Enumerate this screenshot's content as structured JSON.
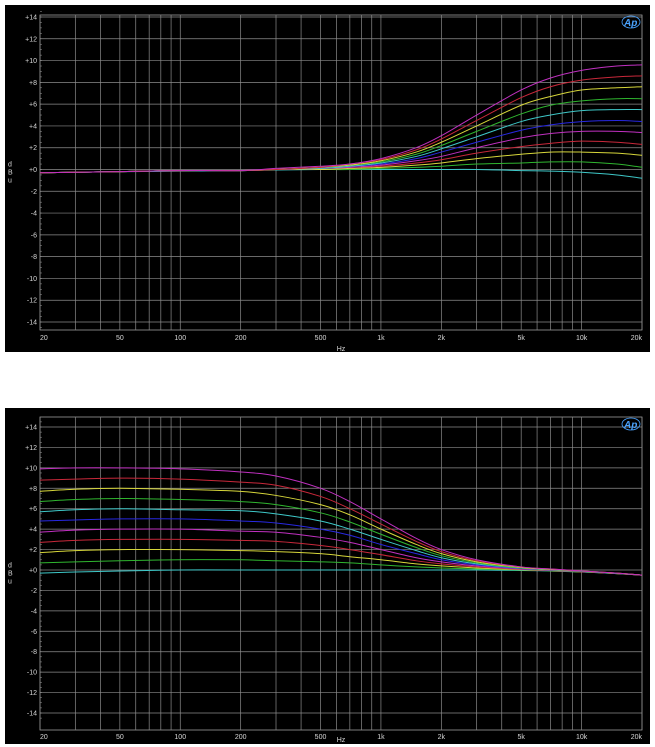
{
  "chart_data": [
    {
      "type": "line",
      "title": "",
      "xlabel": "Hz",
      "ylabel": "dBu",
      "xscale": "log",
      "xlim": [
        20,
        20000
      ],
      "ylim": [
        -14,
        14
      ],
      "grid": true,
      "logo": "Ap",
      "x_ticks": [
        {
          "v": 20,
          "label": "20"
        },
        {
          "v": 50,
          "label": "50"
        },
        {
          "v": 100,
          "label": "100"
        },
        {
          "v": 200,
          "label": "200"
        },
        {
          "v": 500,
          "label": "500"
        },
        {
          "v": 1000,
          "label": "1k"
        },
        {
          "v": 2000,
          "label": "2k"
        },
        {
          "v": 5000,
          "label": "5k"
        },
        {
          "v": 10000,
          "label": "10k"
        },
        {
          "v": 20000,
          "label": "20k"
        }
      ],
      "y_ticks": [
        {
          "v": 14,
          "label": "+14"
        },
        {
          "v": 12,
          "label": "+12"
        },
        {
          "v": 10,
          "label": "+10"
        },
        {
          "v": 8,
          "label": "+8"
        },
        {
          "v": 6,
          "label": "+6"
        },
        {
          "v": 4,
          "label": "+4"
        },
        {
          "v": 2,
          "label": "+2"
        },
        {
          "v": 0,
          "label": "+0"
        },
        {
          "v": -2,
          "label": "-2"
        },
        {
          "v": -4,
          "label": "-4"
        },
        {
          "v": -6,
          "label": "-6"
        },
        {
          "v": -8,
          "label": "-8"
        },
        {
          "v": -10,
          "label": "-10"
        },
        {
          "v": -12,
          "label": "-12"
        },
        {
          "v": -14,
          "label": "-14"
        }
      ],
      "x": [
        20,
        30,
        50,
        100,
        200,
        300,
        500,
        700,
        1000,
        1500,
        2000,
        3000,
        5000,
        7000,
        10000,
        15000,
        20000
      ],
      "series": [
        {
          "color": "#c030c0",
          "values": [
            -0.3,
            -0.25,
            -0.2,
            -0.1,
            -0.1,
            0.1,
            0.3,
            0.5,
            1.0,
            2.0,
            3.1,
            5.0,
            7.3,
            8.4,
            9.1,
            9.5,
            9.6
          ]
        },
        {
          "color": "#c8283a",
          "values": [
            -0.3,
            -0.25,
            -0.2,
            -0.1,
            -0.1,
            0.0,
            0.2,
            0.5,
            0.9,
            1.8,
            2.8,
            4.5,
            6.6,
            7.6,
            8.2,
            8.5,
            8.6
          ]
        },
        {
          "color": "#d6d63a",
          "values": [
            -0.3,
            -0.25,
            -0.2,
            -0.1,
            -0.1,
            0.0,
            0.2,
            0.4,
            0.8,
            1.6,
            2.5,
            4.0,
            5.9,
            6.7,
            7.3,
            7.5,
            7.6
          ]
        },
        {
          "color": "#2fb52f",
          "values": [
            -0.3,
            -0.25,
            -0.2,
            -0.1,
            -0.1,
            0.0,
            0.2,
            0.4,
            0.7,
            1.4,
            2.2,
            3.5,
            5.1,
            5.9,
            6.3,
            6.5,
            6.5
          ]
        },
        {
          "color": "#3ec8c8",
          "values": [
            -0.3,
            -0.25,
            -0.2,
            -0.1,
            -0.1,
            0.0,
            0.1,
            0.3,
            0.6,
            1.2,
            1.9,
            3.0,
            4.4,
            5.0,
            5.4,
            5.5,
            5.5
          ]
        },
        {
          "color": "#2828e0",
          "values": [
            -0.3,
            -0.25,
            -0.2,
            -0.1,
            -0.1,
            0.0,
            0.1,
            0.3,
            0.5,
            1.0,
            1.6,
            2.5,
            3.6,
            4.1,
            4.4,
            4.5,
            4.4
          ]
        },
        {
          "color": "#c030c0",
          "values": [
            -0.3,
            -0.25,
            -0.2,
            -0.1,
            -0.1,
            0.0,
            0.1,
            0.2,
            0.4,
            0.8,
            1.2,
            2.0,
            2.9,
            3.3,
            3.5,
            3.5,
            3.4
          ]
        },
        {
          "color": "#c8283a",
          "values": [
            -0.3,
            -0.25,
            -0.2,
            -0.1,
            -0.1,
            0.0,
            0.1,
            0.2,
            0.3,
            0.6,
            0.9,
            1.5,
            2.1,
            2.4,
            2.6,
            2.5,
            2.3
          ]
        },
        {
          "color": "#d6d63a",
          "values": [
            -0.3,
            -0.25,
            -0.2,
            -0.1,
            -0.1,
            0.0,
            0.0,
            0.1,
            0.2,
            0.4,
            0.6,
            1.0,
            1.4,
            1.6,
            1.6,
            1.5,
            1.3
          ]
        },
        {
          "color": "#2fb52f",
          "values": [
            -0.3,
            -0.25,
            -0.2,
            -0.1,
            -0.1,
            0.0,
            0.0,
            0.0,
            0.1,
            0.2,
            0.3,
            0.5,
            0.6,
            0.7,
            0.7,
            0.5,
            0.2
          ]
        },
        {
          "color": "#3ec8c8",
          "values": [
            -0.3,
            -0.25,
            -0.2,
            -0.15,
            -0.1,
            -0.05,
            0,
            0,
            0,
            0,
            0,
            0,
            -0.1,
            -0.15,
            -0.25,
            -0.5,
            -0.8
          ]
        }
      ]
    },
    {
      "type": "line",
      "title": "",
      "xlabel": "Hz",
      "ylabel": "dBu",
      "xscale": "log",
      "xlim": [
        20,
        20000
      ],
      "ylim": [
        -14,
        14
      ],
      "grid": true,
      "logo": "Ap",
      "x_ticks": [
        {
          "v": 20,
          "label": "20"
        },
        {
          "v": 50,
          "label": "50"
        },
        {
          "v": 100,
          "label": "100"
        },
        {
          "v": 200,
          "label": "200"
        },
        {
          "v": 500,
          "label": "500"
        },
        {
          "v": 1000,
          "label": "1k"
        },
        {
          "v": 2000,
          "label": "2k"
        },
        {
          "v": 5000,
          "label": "5k"
        },
        {
          "v": 10000,
          "label": "10k"
        },
        {
          "v": 20000,
          "label": "20k"
        }
      ],
      "y_ticks": [
        {
          "v": 14,
          "label": "+14"
        },
        {
          "v": 12,
          "label": "+12"
        },
        {
          "v": 10,
          "label": "+10"
        },
        {
          "v": 8,
          "label": "+8"
        },
        {
          "v": 6,
          "label": "+6"
        },
        {
          "v": 4,
          "label": "+4"
        },
        {
          "v": 2,
          "label": "+2"
        },
        {
          "v": 0,
          "label": "+0"
        },
        {
          "v": -2,
          "label": "-2"
        },
        {
          "v": -4,
          "label": "-4"
        },
        {
          "v": -6,
          "label": "-6"
        },
        {
          "v": -8,
          "label": "-8"
        },
        {
          "v": -10,
          "label": "-10"
        },
        {
          "v": -12,
          "label": "-12"
        },
        {
          "v": -14,
          "label": "-14"
        }
      ],
      "x": [
        20,
        30,
        50,
        100,
        200,
        300,
        500,
        700,
        1000,
        1500,
        2000,
        3000,
        5000,
        7000,
        10000,
        15000,
        20000
      ],
      "series": [
        {
          "color": "#c030c0",
          "values": [
            9.9,
            10.0,
            10.0,
            9.9,
            9.6,
            9.2,
            8.0,
            6.7,
            5.0,
            3.1,
            2.0,
            1.0,
            0.3,
            0.1,
            -0.1,
            -0.3,
            -0.5
          ]
        },
        {
          "color": "#c8283a",
          "values": [
            8.8,
            8.9,
            9.0,
            8.9,
            8.6,
            8.3,
            7.2,
            6.0,
            4.5,
            2.8,
            1.8,
            0.9,
            0.3,
            0.1,
            -0.1,
            -0.3,
            -0.5
          ]
        },
        {
          "color": "#d6d63a",
          "values": [
            7.7,
            7.9,
            8.0,
            7.9,
            7.7,
            7.3,
            6.4,
            5.4,
            4.0,
            2.5,
            1.6,
            0.8,
            0.25,
            0.06,
            -0.1,
            -0.3,
            -0.5
          ]
        },
        {
          "color": "#2fb52f",
          "values": [
            6.7,
            6.9,
            7.0,
            6.9,
            6.7,
            6.4,
            5.6,
            4.7,
            3.5,
            2.2,
            1.4,
            0.7,
            0.2,
            0.04,
            -0.13,
            -0.32,
            -0.5
          ]
        },
        {
          "color": "#3ec8c8",
          "values": [
            5.7,
            5.9,
            6.0,
            5.9,
            5.8,
            5.5,
            4.8,
            4.0,
            3.0,
            1.9,
            1.2,
            0.6,
            0.18,
            0.02,
            -0.14,
            -0.33,
            -0.5
          ]
        },
        {
          "color": "#2828e0",
          "values": [
            4.8,
            4.9,
            5.0,
            5.0,
            4.8,
            4.6,
            4.0,
            3.4,
            2.5,
            1.6,
            1.0,
            0.5,
            0.14,
            0.0,
            -0.15,
            -0.33,
            -0.5
          ]
        },
        {
          "color": "#c030c0",
          "values": [
            3.7,
            3.9,
            4.0,
            4.0,
            3.8,
            3.7,
            3.2,
            2.7,
            2.0,
            1.2,
            0.8,
            0.4,
            0.1,
            -0.02,
            -0.16,
            -0.34,
            -0.5
          ]
        },
        {
          "color": "#c8283a",
          "values": [
            2.7,
            2.9,
            3.0,
            3.0,
            2.9,
            2.8,
            2.4,
            2.0,
            1.5,
            0.9,
            0.6,
            0.3,
            0.06,
            -0.04,
            -0.17,
            -0.34,
            -0.5
          ]
        },
        {
          "color": "#d6d63a",
          "values": [
            1.7,
            1.9,
            2.0,
            2.0,
            1.9,
            1.8,
            1.6,
            1.3,
            1.0,
            0.6,
            0.4,
            0.2,
            0.03,
            -0.06,
            -0.18,
            -0.35,
            -0.5
          ]
        },
        {
          "color": "#2fb52f",
          "values": [
            0.7,
            0.8,
            0.9,
            1.0,
            1.0,
            0.9,
            0.8,
            0.7,
            0.5,
            0.3,
            0.2,
            0.1,
            0.0,
            -0.08,
            -0.19,
            -0.35,
            -0.5
          ]
        },
        {
          "color": "#3ec8c8",
          "values": [
            -0.3,
            -0.2,
            -0.1,
            0,
            0,
            0,
            0,
            0,
            0,
            0,
            0,
            0,
            -0.05,
            -0.1,
            -0.2,
            -0.35,
            -0.5
          ]
        }
      ]
    }
  ]
}
